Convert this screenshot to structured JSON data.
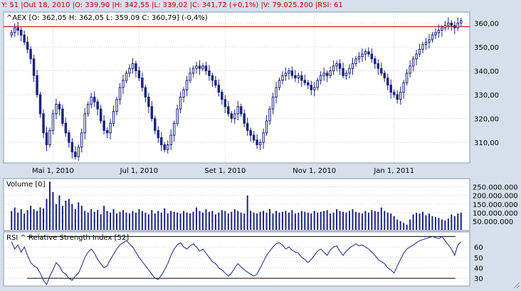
{
  "header": {
    "info_text": "Y: 51 |Out 18, 2010 |O: 339,90 |H: 342,55 |L: 339,02 |C: 341,72 (+0,1%) |V: 79.025.200 |RSI: 61"
  },
  "colors": {
    "background": "#d6e0ec",
    "panel": "#ffffff",
    "candle": "#1a237e",
    "rsi_line": "#1a237e",
    "reference_line": "#d00000"
  },
  "chart_data": [
    {
      "type": "candlestick",
      "legend": "^AEX [O: 362,05  H: 362,05  L: 359,09  C: 360,79] (-0,4%)",
      "x_tick_labels": [
        "Mai 1, 2010",
        "Jul 1, 2010",
        "Set 1, 2010",
        "Nov 1, 2010",
        "Jan 1, 2011"
      ],
      "y_tick_labels": [
        "310,00",
        "320,00",
        "330,00",
        "340,00",
        "350,00",
        "360,00"
      ],
      "y_ticks": [
        310,
        320,
        330,
        340,
        350,
        360
      ],
      "ylim": [
        302,
        364
      ],
      "reference_level": 358.5,
      "grid": "dotted",
      "close": [
        356,
        358,
        357,
        355,
        352,
        349,
        345,
        338,
        330,
        322,
        314,
        309,
        315,
        322,
        326,
        324,
        318,
        314,
        310,
        306,
        304,
        308,
        314,
        322,
        326,
        329,
        327,
        324,
        319,
        315,
        314,
        318,
        323,
        328,
        333,
        336,
        339,
        341,
        343,
        340,
        337,
        333,
        329,
        325,
        320,
        315,
        312,
        309,
        307,
        309,
        313,
        318,
        324,
        329,
        332,
        336,
        339,
        341,
        342,
        341,
        342,
        340,
        338,
        336,
        334,
        331,
        328,
        325,
        322,
        320,
        322,
        325,
        322,
        318,
        315,
        313,
        311,
        309,
        310,
        314,
        319,
        324,
        329,
        333,
        336,
        338,
        339,
        340,
        338,
        337,
        338,
        336,
        335,
        334,
        332,
        333,
        336,
        338,
        339,
        338,
        340,
        342,
        343,
        341,
        338,
        339,
        341,
        343,
        345,
        346,
        347,
        348,
        347,
        345,
        343,
        341,
        339,
        337,
        334,
        331,
        330,
        328,
        331,
        335,
        339,
        342,
        345,
        347,
        349,
        351,
        352,
        353,
        355,
        356,
        357,
        358,
        359,
        360,
        359,
        358,
        360,
        361
      ]
    },
    {
      "type": "bar",
      "legend": "Volume [0]",
      "y_tick_labels": [
        "50.000.000",
        "100.000.000",
        "150.000.000",
        "200.000.000",
        "250.000.000"
      ],
      "y_ticks": [
        50000000,
        100000000,
        150000000,
        200000000,
        250000000
      ],
      "ylim": [
        0,
        290000000
      ],
      "values": [
        110,
        130,
        100,
        120,
        95,
        115,
        140,
        120,
        110,
        130,
        125,
        180,
        280,
        220,
        150,
        200,
        140,
        170,
        180,
        150,
        120,
        160,
        140,
        110,
        100,
        120,
        105,
        115,
        90,
        140,
        110,
        100,
        120,
        95,
        105,
        115,
        100,
        95,
        110,
        100,
        120,
        110,
        100,
        90,
        115,
        95,
        110,
        100,
        125,
        95,
        110,
        105,
        100,
        95,
        110,
        100,
        95,
        105,
        130,
        110,
        100,
        120,
        105,
        110,
        90,
        100,
        115,
        110,
        95,
        105,
        120,
        110,
        100,
        95,
        200,
        110,
        100,
        95,
        105,
        110,
        100,
        120,
        95,
        110,
        100,
        105,
        110,
        100,
        115,
        95,
        100,
        110,
        105,
        100,
        95,
        110,
        100,
        105,
        110,
        115,
        95,
        100,
        120,
        110,
        105,
        100,
        110,
        120,
        105,
        100,
        95,
        110,
        100,
        115,
        110,
        105,
        130,
        110,
        100,
        95,
        80,
        60,
        50,
        40,
        30,
        60,
        90,
        100,
        95,
        105,
        85,
        95,
        80,
        75,
        70,
        60,
        55,
        65,
        90,
        80,
        95,
        100
      ]
    },
    {
      "type": "line",
      "legend": "RSI ^ Relative Strength Index [52]",
      "y_tick_labels": [
        "30",
        "40",
        "50",
        "60"
      ],
      "y_ticks": [
        30,
        40,
        50,
        60
      ],
      "ylim": [
        24,
        73
      ],
      "upper_band": 70,
      "lower_band": 30,
      "values": [
        65,
        58,
        62,
        55,
        60,
        52,
        45,
        42,
        40,
        35,
        28,
        24,
        32,
        38,
        45,
        42,
        36,
        34,
        30,
        28,
        32,
        35,
        42,
        50,
        55,
        58,
        54,
        48,
        44,
        40,
        42,
        48,
        53,
        58,
        62,
        64,
        66,
        63,
        60,
        55,
        50,
        46,
        42,
        38,
        34,
        30,
        29,
        33,
        38,
        44,
        52,
        58,
        62,
        64,
        60,
        58,
        61,
        63,
        60,
        56,
        58,
        54,
        50,
        46,
        44,
        40,
        38,
        35,
        32,
        35,
        40,
        44,
        41,
        38,
        36,
        34,
        32,
        34,
        40,
        46,
        52,
        56,
        60,
        63,
        64,
        62,
        58,
        60,
        57,
        55,
        54,
        50,
        48,
        45,
        48,
        52,
        56,
        58,
        55,
        52,
        57,
        60,
        61,
        56,
        52,
        56,
        59,
        61,
        63,
        61,
        62,
        60,
        58,
        55,
        52,
        48,
        46,
        44,
        40,
        38,
        35,
        42,
        48,
        54,
        58,
        60,
        62,
        64,
        66,
        67,
        68,
        69,
        70,
        69,
        68,
        70,
        66,
        62,
        58,
        52,
        62,
        65
      ]
    }
  ]
}
